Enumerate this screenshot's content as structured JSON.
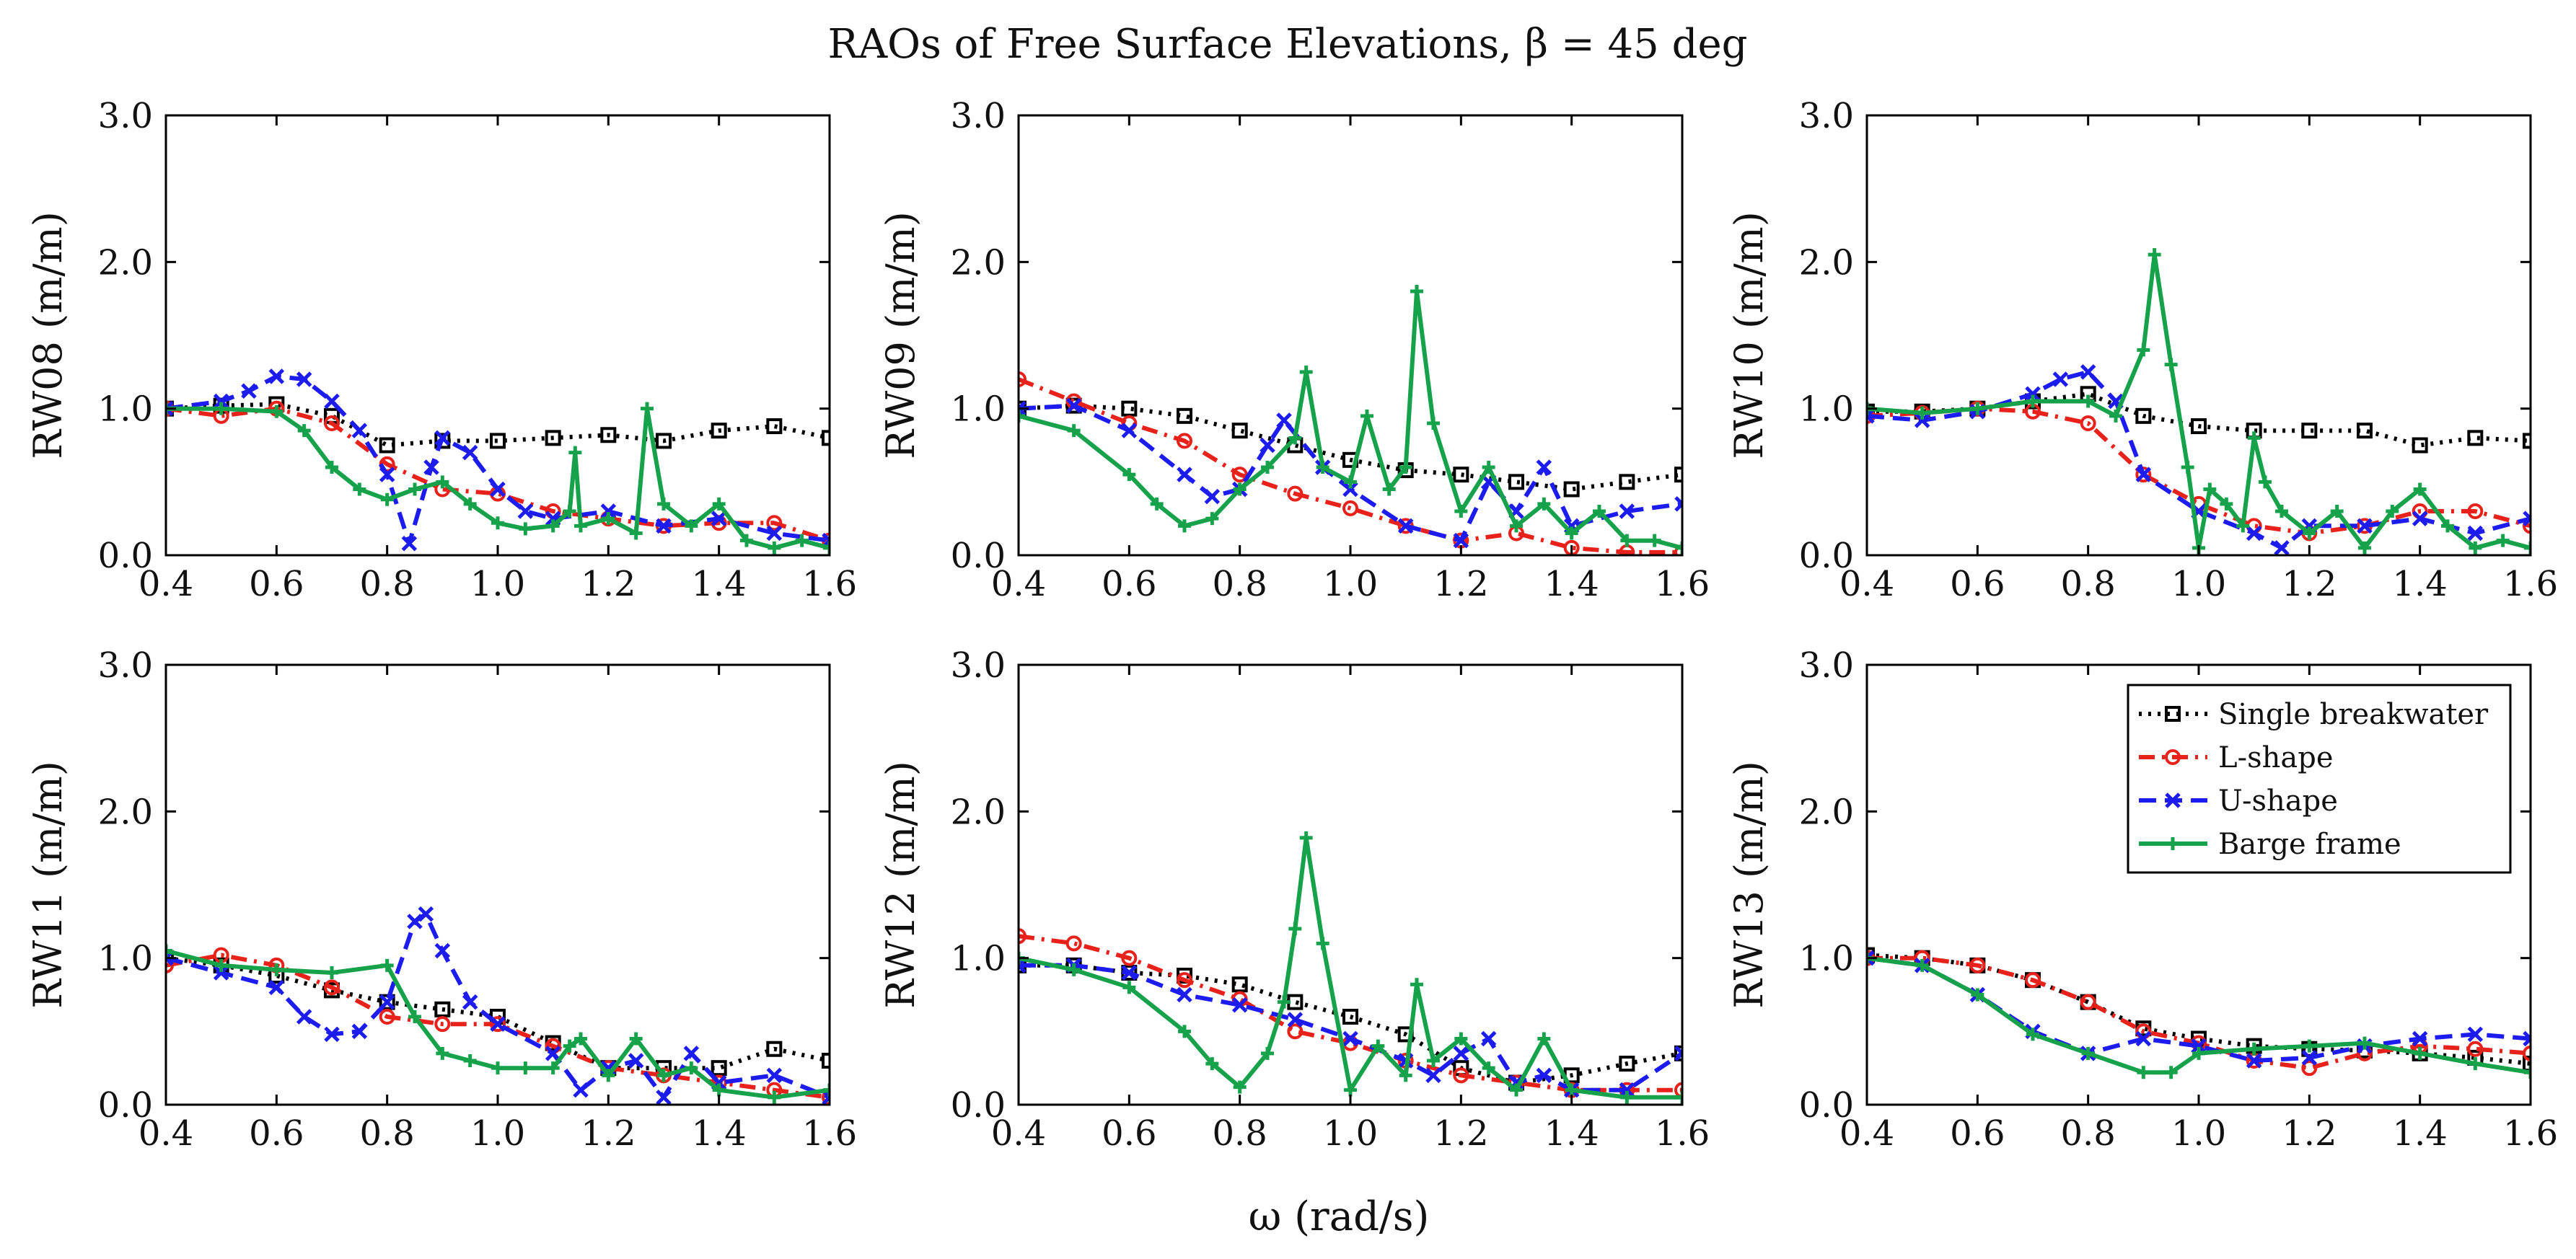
{
  "figure": {
    "title": "RAOs of Free Surface Elevations, β = 45 deg",
    "xlabel": "ω (rad/s)"
  },
  "legend": {
    "entries": [
      {
        "label": "Single breakwater",
        "color": "#000000",
        "dash": "dot",
        "marker": "square"
      },
      {
        "label": "L-shape",
        "color": "#e8211a",
        "dash": "dash-dot",
        "marker": "circle"
      },
      {
        "label": "U-shape",
        "color": "#1c1cf0",
        "dash": "dash",
        "marker": "cross"
      },
      {
        "label": "Barge frame",
        "color": "#15a24a",
        "dash": "solid",
        "marker": "plus"
      }
    ]
  },
  "chart_data": [
    {
      "type": "line",
      "title": "",
      "xlabel": "",
      "ylabel": "RW08 (m/m)",
      "xlim": [
        0.4,
        1.6
      ],
      "ylim": [
        0,
        3
      ],
      "xticks": [
        "0.4",
        "0.6",
        "0.8",
        "1.0",
        "1.2",
        "1.4",
        "1.6"
      ],
      "yticks": [
        "0.0",
        "1.0",
        "2.0",
        "3.0"
      ],
      "series": [
        {
          "name": "Single breakwater",
          "x": [
            0.4,
            0.5,
            0.6,
            0.7,
            0.8,
            0.9,
            1.0,
            1.1,
            1.2,
            1.3,
            1.4,
            1.5,
            1.6
          ],
          "y": [
            1.0,
            1.02,
            1.03,
            0.95,
            0.75,
            0.78,
            0.78,
            0.8,
            0.82,
            0.78,
            0.85,
            0.88,
            0.8
          ]
        },
        {
          "name": "L-shape",
          "x": [
            0.4,
            0.5,
            0.6,
            0.7,
            0.8,
            0.9,
            1.0,
            1.1,
            1.2,
            1.3,
            1.4,
            1.5,
            1.6
          ],
          "y": [
            1.0,
            0.95,
            1.0,
            0.9,
            0.62,
            0.45,
            0.42,
            0.3,
            0.25,
            0.2,
            0.22,
            0.22,
            0.1
          ]
        },
        {
          "name": "U-shape",
          "x": [
            0.4,
            0.5,
            0.55,
            0.6,
            0.65,
            0.7,
            0.75,
            0.8,
            0.84,
            0.88,
            0.9,
            0.95,
            1.0,
            1.05,
            1.1,
            1.2,
            1.3,
            1.4,
            1.5,
            1.6
          ],
          "y": [
            1.0,
            1.05,
            1.12,
            1.22,
            1.2,
            1.05,
            0.85,
            0.55,
            0.08,
            0.6,
            0.8,
            0.7,
            0.45,
            0.3,
            0.25,
            0.3,
            0.2,
            0.25,
            0.15,
            0.1
          ]
        },
        {
          "name": "Barge frame",
          "x": [
            0.4,
            0.5,
            0.6,
            0.65,
            0.7,
            0.75,
            0.8,
            0.85,
            0.9,
            0.95,
            1.0,
            1.05,
            1.1,
            1.13,
            1.14,
            1.15,
            1.2,
            1.25,
            1.27,
            1.3,
            1.35,
            1.4,
            1.45,
            1.5,
            1.55,
            1.6
          ],
          "y": [
            1.0,
            1.0,
            0.98,
            0.85,
            0.6,
            0.45,
            0.38,
            0.45,
            0.5,
            0.35,
            0.22,
            0.18,
            0.2,
            0.3,
            0.7,
            0.2,
            0.25,
            0.15,
            1.0,
            0.35,
            0.2,
            0.35,
            0.1,
            0.05,
            0.1,
            0.05
          ]
        }
      ]
    },
    {
      "type": "line",
      "title": "",
      "xlabel": "",
      "ylabel": "RW09 (m/m)",
      "xlim": [
        0.4,
        1.6
      ],
      "ylim": [
        0,
        3
      ],
      "xticks": [
        "0.4",
        "0.6",
        "0.8",
        "1.0",
        "1.2",
        "1.4",
        "1.6"
      ],
      "yticks": [
        "0.0",
        "1.0",
        "2.0",
        "3.0"
      ],
      "series": [
        {
          "name": "Single breakwater",
          "x": [
            0.4,
            0.5,
            0.6,
            0.7,
            0.8,
            0.9,
            1.0,
            1.1,
            1.2,
            1.3,
            1.4,
            1.5,
            1.6
          ],
          "y": [
            1.0,
            1.02,
            1.0,
            0.95,
            0.85,
            0.75,
            0.65,
            0.58,
            0.55,
            0.5,
            0.45,
            0.5,
            0.55
          ]
        },
        {
          "name": "L-shape",
          "x": [
            0.4,
            0.5,
            0.6,
            0.7,
            0.8,
            0.9,
            1.0,
            1.1,
            1.2,
            1.3,
            1.4,
            1.5,
            1.6
          ],
          "y": [
            1.2,
            1.05,
            0.9,
            0.78,
            0.55,
            0.42,
            0.32,
            0.2,
            0.1,
            0.15,
            0.05,
            0.02,
            0.02
          ]
        },
        {
          "name": "U-shape",
          "x": [
            0.4,
            0.5,
            0.6,
            0.7,
            0.75,
            0.8,
            0.85,
            0.88,
            0.95,
            1.0,
            1.1,
            1.2,
            1.25,
            1.3,
            1.35,
            1.4,
            1.5,
            1.6
          ],
          "y": [
            1.0,
            1.02,
            0.85,
            0.55,
            0.4,
            0.45,
            0.75,
            0.92,
            0.6,
            0.45,
            0.2,
            0.1,
            0.5,
            0.3,
            0.6,
            0.2,
            0.3,
            0.35
          ]
        },
        {
          "name": "Barge frame",
          "x": [
            0.4,
            0.5,
            0.6,
            0.65,
            0.7,
            0.75,
            0.8,
            0.85,
            0.9,
            0.92,
            0.95,
            1.0,
            1.03,
            1.07,
            1.1,
            1.12,
            1.15,
            1.2,
            1.25,
            1.3,
            1.35,
            1.4,
            1.45,
            1.5,
            1.55,
            1.6
          ],
          "y": [
            0.95,
            0.85,
            0.55,
            0.35,
            0.2,
            0.25,
            0.45,
            0.6,
            0.8,
            1.25,
            0.6,
            0.5,
            0.95,
            0.45,
            0.6,
            1.8,
            0.9,
            0.3,
            0.6,
            0.2,
            0.35,
            0.15,
            0.3,
            0.1,
            0.1,
            0.05
          ]
        }
      ]
    },
    {
      "type": "line",
      "title": "",
      "xlabel": "",
      "ylabel": "RW10 (m/m)",
      "xlim": [
        0.4,
        1.6
      ],
      "ylim": [
        0,
        3
      ],
      "xticks": [
        "0.4",
        "0.6",
        "0.8",
        "1.0",
        "1.2",
        "1.4",
        "1.6"
      ],
      "yticks": [
        "0.0",
        "1.0",
        "2.0",
        "3.0"
      ],
      "series": [
        {
          "name": "Single breakwater",
          "x": [
            0.4,
            0.5,
            0.6,
            0.7,
            0.8,
            0.9,
            1.0,
            1.1,
            1.2,
            1.3,
            1.4,
            1.5,
            1.6
          ],
          "y": [
            0.98,
            0.98,
            1.0,
            1.05,
            1.1,
            0.95,
            0.88,
            0.85,
            0.85,
            0.85,
            0.75,
            0.8,
            0.78
          ]
        },
        {
          "name": "L-shape",
          "x": [
            0.4,
            0.5,
            0.6,
            0.7,
            0.8,
            0.9,
            1.0,
            1.1,
            1.2,
            1.3,
            1.4,
            1.5,
            1.6
          ],
          "y": [
            0.95,
            0.97,
            1.0,
            0.98,
            0.9,
            0.55,
            0.35,
            0.2,
            0.15,
            0.2,
            0.3,
            0.3,
            0.2
          ]
        },
        {
          "name": "U-shape",
          "x": [
            0.4,
            0.5,
            0.6,
            0.7,
            0.75,
            0.8,
            0.85,
            0.9,
            1.0,
            1.1,
            1.15,
            1.2,
            1.3,
            1.4,
            1.5,
            1.6
          ],
          "y": [
            0.95,
            0.92,
            0.98,
            1.1,
            1.2,
            1.25,
            1.05,
            0.55,
            0.3,
            0.15,
            0.05,
            0.2,
            0.2,
            0.25,
            0.15,
            0.25
          ]
        },
        {
          "name": "Barge frame",
          "x": [
            0.4,
            0.5,
            0.6,
            0.7,
            0.8,
            0.85,
            0.9,
            0.92,
            0.95,
            0.98,
            1.0,
            1.02,
            1.05,
            1.08,
            1.1,
            1.12,
            1.15,
            1.2,
            1.25,
            1.3,
            1.35,
            1.4,
            1.45,
            1.5,
            1.55,
            1.6
          ],
          "y": [
            1.0,
            0.97,
            1.0,
            1.05,
            1.05,
            0.95,
            1.4,
            2.05,
            1.3,
            0.6,
            0.05,
            0.45,
            0.35,
            0.2,
            0.8,
            0.5,
            0.3,
            0.15,
            0.3,
            0.05,
            0.3,
            0.45,
            0.2,
            0.05,
            0.1,
            0.05
          ]
        }
      ]
    },
    {
      "type": "line",
      "title": "",
      "xlabel": "",
      "ylabel": "RW11 (m/m)",
      "xlim": [
        0.4,
        1.6
      ],
      "ylim": [
        0,
        3
      ],
      "xticks": [
        "0.4",
        "0.6",
        "0.8",
        "1.0",
        "1.2",
        "1.4",
        "1.6"
      ],
      "yticks": [
        "0.0",
        "1.0",
        "2.0",
        "3.0"
      ],
      "series": [
        {
          "name": "Single breakwater",
          "x": [
            0.4,
            0.5,
            0.6,
            0.7,
            0.8,
            0.9,
            1.0,
            1.1,
            1.2,
            1.3,
            1.4,
            1.5,
            1.6
          ],
          "y": [
            1.0,
            0.95,
            0.88,
            0.78,
            0.7,
            0.65,
            0.6,
            0.42,
            0.25,
            0.25,
            0.25,
            0.38,
            0.3
          ]
        },
        {
          "name": "L-shape",
          "x": [
            0.4,
            0.5,
            0.6,
            0.7,
            0.8,
            0.9,
            1.0,
            1.1,
            1.2,
            1.3,
            1.4,
            1.5,
            1.6
          ],
          "y": [
            0.95,
            1.02,
            0.95,
            0.8,
            0.6,
            0.55,
            0.55,
            0.4,
            0.25,
            0.2,
            0.15,
            0.1,
            0.05
          ]
        },
        {
          "name": "U-shape",
          "x": [
            0.4,
            0.5,
            0.6,
            0.65,
            0.7,
            0.75,
            0.8,
            0.85,
            0.87,
            0.9,
            0.95,
            1.0,
            1.1,
            1.15,
            1.2,
            1.25,
            1.3,
            1.35,
            1.4,
            1.5,
            1.6
          ],
          "y": [
            1.0,
            0.9,
            0.8,
            0.6,
            0.48,
            0.5,
            0.7,
            1.25,
            1.3,
            1.05,
            0.7,
            0.55,
            0.35,
            0.1,
            0.25,
            0.3,
            0.05,
            0.35,
            0.15,
            0.2,
            0.05
          ]
        },
        {
          "name": "Barge frame",
          "x": [
            0.4,
            0.5,
            0.6,
            0.7,
            0.8,
            0.85,
            0.9,
            0.95,
            1.0,
            1.05,
            1.1,
            1.13,
            1.15,
            1.2,
            1.25,
            1.3,
            1.35,
            1.4,
            1.5,
            1.6
          ],
          "y": [
            1.05,
            0.95,
            0.92,
            0.9,
            0.95,
            0.6,
            0.35,
            0.3,
            0.25,
            0.25,
            0.25,
            0.4,
            0.45,
            0.2,
            0.45,
            0.2,
            0.25,
            0.1,
            0.05,
            0.1
          ]
        }
      ]
    },
    {
      "type": "line",
      "title": "",
      "xlabel": "",
      "ylabel": "RW12 (m/m)",
      "xlim": [
        0.4,
        1.6
      ],
      "ylim": [
        0,
        3
      ],
      "xticks": [
        "0.4",
        "0.6",
        "0.8",
        "1.0",
        "1.2",
        "1.4",
        "1.6"
      ],
      "yticks": [
        "0.0",
        "1.0",
        "2.0",
        "3.0"
      ],
      "series": [
        {
          "name": "Single breakwater",
          "x": [
            0.4,
            0.5,
            0.6,
            0.7,
            0.8,
            0.9,
            1.0,
            1.1,
            1.2,
            1.3,
            1.4,
            1.5,
            1.6
          ],
          "y": [
            0.95,
            0.95,
            0.9,
            0.88,
            0.82,
            0.7,
            0.6,
            0.48,
            0.25,
            0.15,
            0.2,
            0.28,
            0.35
          ]
        },
        {
          "name": "L-shape",
          "x": [
            0.4,
            0.5,
            0.6,
            0.7,
            0.8,
            0.9,
            1.0,
            1.1,
            1.2,
            1.3,
            1.4,
            1.5,
            1.6
          ],
          "y": [
            1.15,
            1.1,
            1.0,
            0.85,
            0.72,
            0.5,
            0.42,
            0.3,
            0.2,
            0.15,
            0.1,
            0.1,
            0.1
          ]
        },
        {
          "name": "U-shape",
          "x": [
            0.4,
            0.5,
            0.6,
            0.7,
            0.8,
            0.9,
            1.0,
            1.1,
            1.15,
            1.2,
            1.25,
            1.3,
            1.35,
            1.4,
            1.5,
            1.6
          ],
          "y": [
            0.95,
            0.95,
            0.9,
            0.75,
            0.68,
            0.58,
            0.45,
            0.3,
            0.2,
            0.35,
            0.45,
            0.15,
            0.2,
            0.1,
            0.1,
            0.35
          ]
        },
        {
          "name": "Barge frame",
          "x": [
            0.4,
            0.5,
            0.6,
            0.7,
            0.75,
            0.8,
            0.85,
            0.88,
            0.9,
            0.92,
            0.95,
            1.0,
            1.05,
            1.1,
            1.12,
            1.15,
            1.2,
            1.25,
            1.3,
            1.35,
            1.4,
            1.5,
            1.6
          ],
          "y": [
            1.0,
            0.92,
            0.8,
            0.5,
            0.28,
            0.12,
            0.35,
            0.7,
            1.2,
            1.82,
            1.1,
            0.1,
            0.4,
            0.2,
            0.82,
            0.3,
            0.45,
            0.25,
            0.1,
            0.45,
            0.1,
            0.05,
            0.05
          ]
        }
      ]
    },
    {
      "type": "line",
      "title": "",
      "xlabel": "",
      "ylabel": "RW13 (m/m)",
      "xlim": [
        0.4,
        1.6
      ],
      "ylim": [
        0,
        3
      ],
      "xticks": [
        "0.4",
        "0.6",
        "0.8",
        "1.0",
        "1.2",
        "1.4",
        "1.6"
      ],
      "yticks": [
        "0.0",
        "1.0",
        "2.0",
        "3.0"
      ],
      "series": [
        {
          "name": "Single breakwater",
          "x": [
            0.4,
            0.5,
            0.6,
            0.7,
            0.8,
            0.9,
            1.0,
            1.1,
            1.2,
            1.3,
            1.4,
            1.5,
            1.6
          ],
          "y": [
            1.02,
            1.0,
            0.95,
            0.85,
            0.7,
            0.52,
            0.45,
            0.4,
            0.38,
            0.37,
            0.35,
            0.32,
            0.28
          ]
        },
        {
          "name": "L-shape",
          "x": [
            0.4,
            0.5,
            0.6,
            0.7,
            0.8,
            0.9,
            1.0,
            1.1,
            1.2,
            1.3,
            1.4,
            1.5,
            1.6
          ],
          "y": [
            1.0,
            1.0,
            0.95,
            0.85,
            0.7,
            0.5,
            0.42,
            0.3,
            0.25,
            0.35,
            0.4,
            0.38,
            0.35
          ]
        },
        {
          "name": "U-shape",
          "x": [
            0.4,
            0.5,
            0.6,
            0.7,
            0.8,
            0.9,
            1.0,
            1.1,
            1.2,
            1.3,
            1.4,
            1.5,
            1.6
          ],
          "y": [
            1.0,
            0.95,
            0.75,
            0.5,
            0.35,
            0.45,
            0.4,
            0.3,
            0.32,
            0.4,
            0.45,
            0.48,
            0.45
          ]
        },
        {
          "name": "Barge frame",
          "x": [
            0.4,
            0.5,
            0.6,
            0.7,
            0.8,
            0.9,
            0.95,
            1.0,
            1.1,
            1.2,
            1.3,
            1.4,
            1.5,
            1.6
          ],
          "y": [
            1.0,
            0.95,
            0.75,
            0.48,
            0.35,
            0.22,
            0.22,
            0.35,
            0.38,
            0.4,
            0.42,
            0.35,
            0.28,
            0.22
          ]
        }
      ]
    }
  ]
}
